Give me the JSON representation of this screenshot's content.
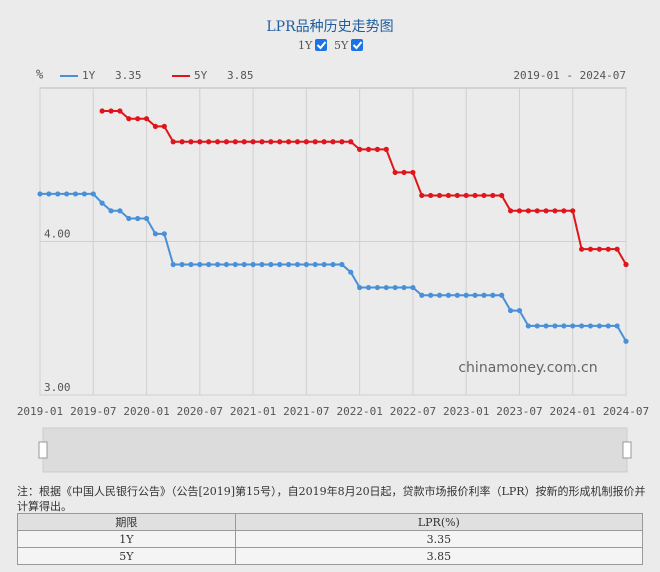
{
  "chart_data": {
    "type": "line",
    "title": "LPR品种历史走势图",
    "y_label": "%",
    "date_range": "2019-01 - 2024-07",
    "watermark": "chinamoney.com.cn",
    "categories": [
      "2019-01",
      null,
      null,
      null,
      null,
      null,
      "2019-07",
      null,
      null,
      null,
      null,
      null,
      "2020-01",
      null,
      null,
      null,
      null,
      null,
      "2020-07",
      null,
      null,
      null,
      null,
      null,
      "2021-01",
      null,
      null,
      null,
      null,
      null,
      "2021-07",
      null,
      null,
      null,
      null,
      null,
      "2022-01",
      null,
      null,
      null,
      null,
      null,
      "2022-07",
      null,
      null,
      null,
      null,
      null,
      "2023-01",
      null,
      null,
      null,
      null,
      null,
      "2023-07",
      null,
      null,
      null,
      null,
      null,
      "2024-01",
      null,
      null,
      null,
      null,
      null,
      "2024-07"
    ],
    "series": [
      {
        "name": "1Y",
        "color": "#4a90d9",
        "values": [
          4.31,
          4.31,
          4.31,
          4.31,
          4.31,
          4.31,
          4.31,
          4.25,
          4.2,
          4.2,
          4.15,
          4.15,
          4.15,
          4.05,
          4.05,
          3.85,
          3.85,
          3.85,
          3.85,
          3.85,
          3.85,
          3.85,
          3.85,
          3.85,
          3.85,
          3.85,
          3.85,
          3.85,
          3.85,
          3.85,
          3.85,
          3.85,
          3.85,
          3.85,
          3.85,
          3.8,
          3.7,
          3.7,
          3.7,
          3.7,
          3.7,
          3.7,
          3.7,
          3.65,
          3.65,
          3.65,
          3.65,
          3.65,
          3.65,
          3.65,
          3.65,
          3.65,
          3.65,
          3.55,
          3.55,
          3.45,
          3.45,
          3.45,
          3.45,
          3.45,
          3.45,
          3.45,
          3.45,
          3.45,
          3.45,
          3.45,
          3.35
        ]
      },
      {
        "name": "5Y",
        "color": "#e0141b",
        "values": [
          null,
          null,
          null,
          null,
          null,
          null,
          null,
          4.85,
          4.85,
          4.85,
          4.8,
          4.8,
          4.8,
          4.75,
          4.75,
          4.65,
          4.65,
          4.65,
          4.65,
          4.65,
          4.65,
          4.65,
          4.65,
          4.65,
          4.65,
          4.65,
          4.65,
          4.65,
          4.65,
          4.65,
          4.65,
          4.65,
          4.65,
          4.65,
          4.65,
          4.65,
          4.6,
          4.6,
          4.6,
          4.6,
          4.45,
          4.45,
          4.45,
          4.3,
          4.3,
          4.3,
          4.3,
          4.3,
          4.3,
          4.3,
          4.3,
          4.3,
          4.3,
          4.2,
          4.2,
          4.2,
          4.2,
          4.2,
          4.2,
          4.2,
          4.2,
          3.95,
          3.95,
          3.95,
          3.95,
          3.95,
          3.85
        ]
      }
    ],
    "ylim": [
      3,
      5
    ],
    "yticks": [
      {
        "value": 3,
        "label": "3.00"
      },
      {
        "value": 4,
        "label": "4.00"
      }
    ],
    "grid": true
  },
  "note": "注：根据《中国人民银行公告》（公告[2019]第15号），自2019年8月20日起，贷款市场报价利率（LPR）按新的形成机制报价并计算得出。",
  "table": {
    "header": [
      "期限",
      "LPR(%)"
    ],
    "rows": [
      [
        "1Y",
        "3.35"
      ],
      [
        "5Y",
        "3.85"
      ]
    ]
  }
}
